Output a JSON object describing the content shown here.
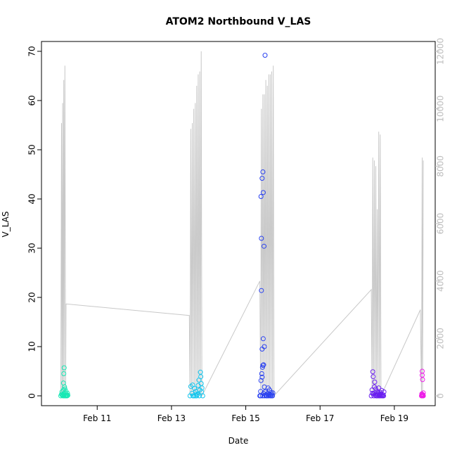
{
  "chart_data": {
    "type": "scatter",
    "title": "ATOM2 Northbound V_LAS",
    "xlabel": "Date",
    "ylabel": "V_LAS",
    "x_ticks": [
      "Feb 11",
      "Feb 13",
      "Feb 15",
      "Feb 17",
      "Feb 19"
    ],
    "x_tick_days": [
      11,
      13,
      15,
      17,
      19
    ],
    "xlim_days": [
      9.5,
      20.1
    ],
    "y_ticks": [
      "0",
      "10",
      "20",
      "30",
      "40",
      "50",
      "60",
      "70"
    ],
    "ylim": [
      -2,
      72
    ],
    "y2_ticks": [
      "0",
      "2000",
      "4000",
      "6000",
      "8000",
      "10000",
      "12000"
    ],
    "y2lim": [
      -343,
      12343
    ],
    "grid": false,
    "colors": {
      "line": "#c8c8c8",
      "right_axis": "#bdbdbd",
      "group1": "#16e8b4",
      "group2": "#14c6ee",
      "group3": "#2a42f0",
      "group4": "#6a1ff0",
      "group5": "#ee1ee8"
    },
    "series": [
      {
        "color": "#16e8b4",
        "points": [
          [
            10.02,
            0
          ],
          [
            10.04,
            0.3
          ],
          [
            10.05,
            0.8
          ],
          [
            10.07,
            0.2
          ],
          [
            10.09,
            1.2
          ],
          [
            10.1,
            0.4
          ],
          [
            10.12,
            1.8
          ],
          [
            10.13,
            0.6
          ],
          [
            10.15,
            0
          ],
          [
            10.16,
            0.9
          ],
          [
            10.18,
            0.2
          ],
          [
            10.2,
            0.5
          ],
          [
            10.08,
            0
          ],
          [
            10.11,
            0
          ],
          [
            10.14,
            0
          ],
          [
            10.17,
            0
          ],
          [
            10.06,
            0.1
          ],
          [
            10.19,
            0
          ],
          [
            10.21,
            0.1
          ],
          [
            10.1,
            4.5
          ],
          [
            10.11,
            5.7
          ],
          [
            10.09,
            2.6
          ],
          [
            10.13,
            1.4
          ],
          [
            10.1,
            0
          ]
        ]
      },
      {
        "color": "#14c6ee",
        "points": [
          [
            13.5,
            0
          ],
          [
            13.52,
            1.9
          ],
          [
            13.55,
            0.5
          ],
          [
            13.57,
            2.2
          ],
          [
            13.6,
            0
          ],
          [
            13.62,
            1.5
          ],
          [
            13.65,
            0.9
          ],
          [
            13.68,
            0
          ],
          [
            13.7,
            0.3
          ],
          [
            13.72,
            2.1
          ],
          [
            13.74,
            3.2
          ],
          [
            13.76,
            1.2
          ],
          [
            13.78,
            4.8
          ],
          [
            13.8,
            2.5
          ],
          [
            13.82,
            1.6
          ],
          [
            13.84,
            0
          ],
          [
            13.58,
            0
          ],
          [
            13.64,
            0
          ],
          [
            13.79,
            3.9
          ],
          [
            13.81,
            0.8
          ],
          [
            13.75,
            0
          ],
          [
            13.66,
            0.4
          ]
        ]
      },
      {
        "color": "#2a42f0",
        "points": [
          [
            15.38,
            0
          ],
          [
            15.4,
            0.9
          ],
          [
            15.42,
            21.4
          ],
          [
            15.42,
            32
          ],
          [
            15.41,
            40.5
          ],
          [
            15.44,
            44.2
          ],
          [
            15.46,
            45.5
          ],
          [
            15.47,
            41.3
          ],
          [
            15.49,
            30.4
          ],
          [
            15.52,
            69.2
          ],
          [
            15.45,
            5.8
          ],
          [
            15.46,
            6.2
          ],
          [
            15.48,
            6.3
          ],
          [
            15.43,
            4.5
          ],
          [
            15.44,
            3.8
          ],
          [
            15.47,
            11.6
          ],
          [
            15.5,
            10
          ],
          [
            15.44,
            9.5
          ],
          [
            15.41,
            3.1
          ],
          [
            15.5,
            1.8
          ],
          [
            15.52,
            0.8
          ],
          [
            15.55,
            0
          ],
          [
            15.58,
            0.4
          ],
          [
            15.6,
            1.6
          ],
          [
            15.62,
            0.2
          ],
          [
            15.64,
            1.2
          ],
          [
            15.66,
            0
          ],
          [
            15.68,
            0.7
          ],
          [
            15.7,
            0.3
          ],
          [
            15.72,
            0
          ],
          [
            15.4,
            0
          ],
          [
            15.45,
            0
          ],
          [
            15.5,
            0
          ],
          [
            15.53,
            0.2
          ],
          [
            15.57,
            0
          ],
          [
            15.61,
            0
          ],
          [
            15.65,
            0.3
          ],
          [
            15.69,
            0
          ],
          [
            15.73,
            0.6
          ],
          [
            15.48,
            0.5
          ]
        ]
      },
      {
        "color": "#6a1ff0",
        "points": [
          [
            18.38,
            0
          ],
          [
            18.4,
            1.2
          ],
          [
            18.42,
            4.9
          ],
          [
            18.43,
            3.9
          ],
          [
            18.44,
            0.4
          ],
          [
            18.46,
            1.8
          ],
          [
            18.47,
            2.8
          ],
          [
            18.48,
            0.6
          ],
          [
            18.5,
            1.4
          ],
          [
            18.52,
            0
          ],
          [
            18.54,
            0.9
          ],
          [
            18.56,
            0.3
          ],
          [
            18.58,
            1.6
          ],
          [
            18.6,
            0
          ],
          [
            18.62,
            0.7
          ],
          [
            18.64,
            0.4
          ],
          [
            18.66,
            1.1
          ],
          [
            18.68,
            0
          ],
          [
            18.7,
            0.2
          ],
          [
            18.72,
            0.8
          ],
          [
            18.45,
            0
          ],
          [
            18.51,
            0
          ],
          [
            18.55,
            0
          ],
          [
            18.59,
            0
          ],
          [
            18.63,
            0
          ],
          [
            18.67,
            0
          ],
          [
            18.41,
            0.5
          ],
          [
            18.49,
            0.2
          ],
          [
            18.53,
            0.3
          ],
          [
            18.57,
            0.6
          ],
          [
            18.61,
            0.2
          ],
          [
            18.65,
            0.1
          ],
          [
            18.71,
            0
          ]
        ]
      },
      {
        "color": "#ee1ee8",
        "points": [
          [
            19.73,
            0
          ],
          [
            19.74,
            0.4
          ],
          [
            19.75,
            5
          ],
          [
            19.75,
            4.2
          ],
          [
            19.76,
            3.3
          ],
          [
            19.77,
            0.2
          ],
          [
            19.78,
            0.6
          ],
          [
            19.74,
            0
          ],
          [
            19.76,
            0
          ],
          [
            19.78,
            0
          ],
          [
            19.75,
            0.3
          ],
          [
            19.77,
            0.1
          ]
        ]
      }
    ],
    "line_y2_description_values": {
      "points": [
        [
          10.02,
          0
        ],
        [
          10.04,
          9500
        ],
        [
          10.05,
          0
        ],
        [
          10.07,
          10200
        ],
        [
          10.08,
          0
        ],
        [
          10.1,
          11000
        ],
        [
          10.11,
          0
        ],
        [
          10.13,
          11500
        ],
        [
          10.15,
          0
        ],
        [
          10.16,
          3200
        ],
        [
          13.48,
          2800
        ],
        [
          13.5,
          0
        ],
        [
          13.52,
          9300
        ],
        [
          13.54,
          0
        ],
        [
          13.56,
          9500
        ],
        [
          13.58,
          0
        ],
        [
          13.6,
          10000
        ],
        [
          13.62,
          0
        ],
        [
          13.64,
          10200
        ],
        [
          13.66,
          0
        ],
        [
          13.68,
          10800
        ],
        [
          13.7,
          0
        ],
        [
          13.72,
          11200
        ],
        [
          13.74,
          0
        ],
        [
          13.76,
          11300
        ],
        [
          13.78,
          0
        ],
        [
          13.8,
          12000
        ],
        [
          13.82,
          0
        ],
        [
          15.38,
          4000
        ],
        [
          15.4,
          0
        ],
        [
          15.42,
          10000
        ],
        [
          15.44,
          0
        ],
        [
          15.46,
          10500
        ],
        [
          15.48,
          0
        ],
        [
          15.5,
          10500
        ],
        [
          15.52,
          0
        ],
        [
          15.54,
          11000
        ],
        [
          15.56,
          0
        ],
        [
          15.58,
          10800
        ],
        [
          15.6,
          0
        ],
        [
          15.62,
          11200
        ],
        [
          15.64,
          0
        ],
        [
          15.66,
          11200
        ],
        [
          15.68,
          0
        ],
        [
          15.7,
          11300
        ],
        [
          15.72,
          0
        ],
        [
          15.74,
          11500
        ],
        [
          15.76,
          0
        ],
        [
          18.38,
          3700
        ],
        [
          18.4,
          0
        ],
        [
          18.42,
          8300
        ],
        [
          18.44,
          0
        ],
        [
          18.46,
          8200
        ],
        [
          18.48,
          0
        ],
        [
          18.5,
          8000
        ],
        [
          18.52,
          0
        ],
        [
          18.54,
          6500
        ],
        [
          18.56,
          0
        ],
        [
          18.58,
          9200
        ],
        [
          18.6,
          0
        ],
        [
          18.62,
          9100
        ],
        [
          18.64,
          0
        ],
        [
          19.7,
          3000
        ],
        [
          19.73,
          0
        ],
        [
          19.75,
          8300
        ],
        [
          19.76,
          0
        ],
        [
          19.78,
          8200
        ]
      ]
    }
  }
}
